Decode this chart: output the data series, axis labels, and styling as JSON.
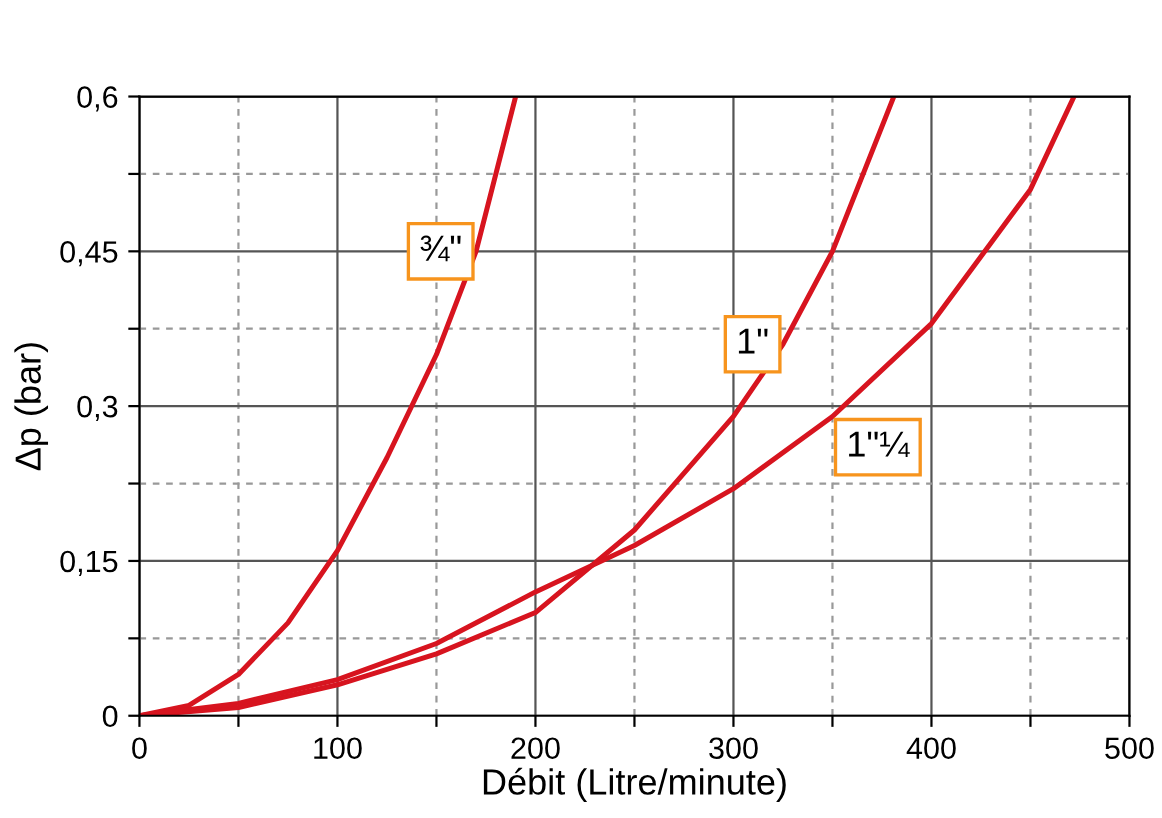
{
  "chart_data": {
    "type": "line",
    "xlabel": "Débit (Litre/minute)",
    "ylabel": "Δp (bar)",
    "series": [
      {
        "name": "¾\"",
        "color": "#d7141f",
        "x": [
          0,
          25,
          50,
          75,
          100,
          125,
          150,
          170,
          190
        ],
        "values": [
          0,
          0.01,
          0.04,
          0.09,
          0.16,
          0.25,
          0.35,
          0.45,
          0.6
        ]
      },
      {
        "name": "1\"",
        "color": "#d7141f",
        "x": [
          0,
          50,
          100,
          150,
          200,
          250,
          300,
          325,
          350,
          381
        ],
        "values": [
          0,
          0.008,
          0.03,
          0.06,
          0.1,
          0.18,
          0.29,
          0.36,
          0.45,
          0.6
        ]
      },
      {
        "name": "1\"¼",
        "color": "#d7141f",
        "x": [
          0,
          50,
          100,
          150,
          200,
          250,
          300,
          350,
          400,
          450,
          472
        ],
        "values": [
          0,
          0.012,
          0.035,
          0.07,
          0.12,
          0.165,
          0.22,
          0.29,
          0.38,
          0.51,
          0.6
        ]
      }
    ],
    "xlim": [
      0,
      500
    ],
    "ylim": [
      0,
      0.6
    ],
    "xticks": [
      0,
      {
        "value": 50,
        "label": null
      },
      100,
      {
        "value": 150,
        "label": null
      },
      200,
      {
        "value": 250,
        "label": null
      },
      300,
      {
        "value": 350,
        "label": null
      },
      400,
      {
        "value": 450,
        "label": null
      },
      500
    ],
    "yticks": [
      0,
      {
        "value": 0.075,
        "label": null
      },
      {
        "value": 0.15,
        "label": "0,15"
      },
      {
        "value": 0.225,
        "label": null
      },
      {
        "value": 0.3,
        "label": "0,3"
      },
      {
        "value": 0.375,
        "label": null
      },
      {
        "value": 0.45,
        "label": "0,45"
      },
      {
        "value": 0.525,
        "label": null
      },
      {
        "value": 0.6,
        "label": "0,6"
      }
    ],
    "grid": true,
    "marker": "none",
    "line_style": "solid",
    "legend": false
  }
}
